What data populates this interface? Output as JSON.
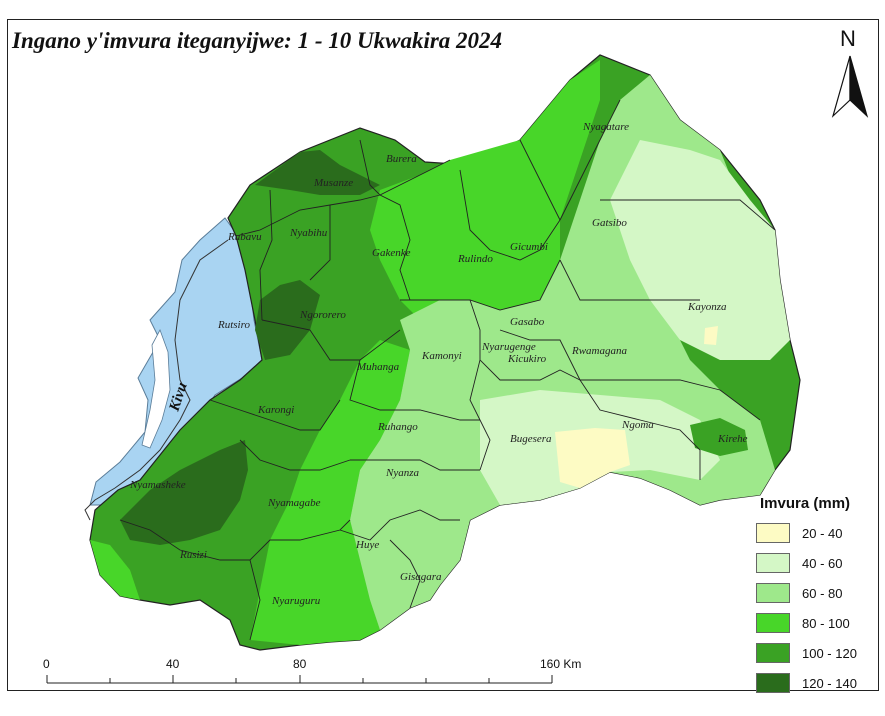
{
  "title": "Ingano y'imvura iteganyijwe: 1 - 10 Ukwakira 2024",
  "north_label": "N",
  "lake_label": "Kivu",
  "districts": [
    {
      "name": "Nyagatare"
    },
    {
      "name": "Burera"
    },
    {
      "name": "Musanze"
    },
    {
      "name": "Rubavu"
    },
    {
      "name": "Nyabihu"
    },
    {
      "name": "Gakenke"
    },
    {
      "name": "Rulindo"
    },
    {
      "name": "Gicumbi"
    },
    {
      "name": "Gatsibo"
    },
    {
      "name": "Kayonza"
    },
    {
      "name": "Rutsiro"
    },
    {
      "name": "Ngororero"
    },
    {
      "name": "Muhanga"
    },
    {
      "name": "Kamonyi"
    },
    {
      "name": "Gasabo"
    },
    {
      "name": "Nyarugenge"
    },
    {
      "name": "Kicukiro"
    },
    {
      "name": "Rwamagana"
    },
    {
      "name": "Karongi"
    },
    {
      "name": "Ruhango"
    },
    {
      "name": "Bugesera"
    },
    {
      "name": "Ngoma"
    },
    {
      "name": "Kirehe"
    },
    {
      "name": "Nyanza"
    },
    {
      "name": "Nyamasheke"
    },
    {
      "name": "Nyamagabe"
    },
    {
      "name": "Huye"
    },
    {
      "name": "Gisagara"
    },
    {
      "name": "Rusizi"
    },
    {
      "name": "Nyaruguru"
    }
  ],
  "legend": {
    "title": "Imvura (mm)",
    "items": [
      {
        "label": "20 - 40",
        "color": "#fdfbc4"
      },
      {
        "label": "40 - 60",
        "color": "#d4f7c6"
      },
      {
        "label": "60 - 80",
        "color": "#9ee88b"
      },
      {
        "label": "80 - 100",
        "color": "#48d629"
      },
      {
        "label": "100 - 120",
        "color": "#3aa224"
      },
      {
        "label": "120 - 140",
        "color": "#2a6c1c"
      }
    ]
  },
  "scale_bar": {
    "ticks": [
      "0",
      "40",
      "80",
      "160 Km"
    ]
  },
  "colors": {
    "lake": "#a9d4f2",
    "border": "#222222"
  }
}
